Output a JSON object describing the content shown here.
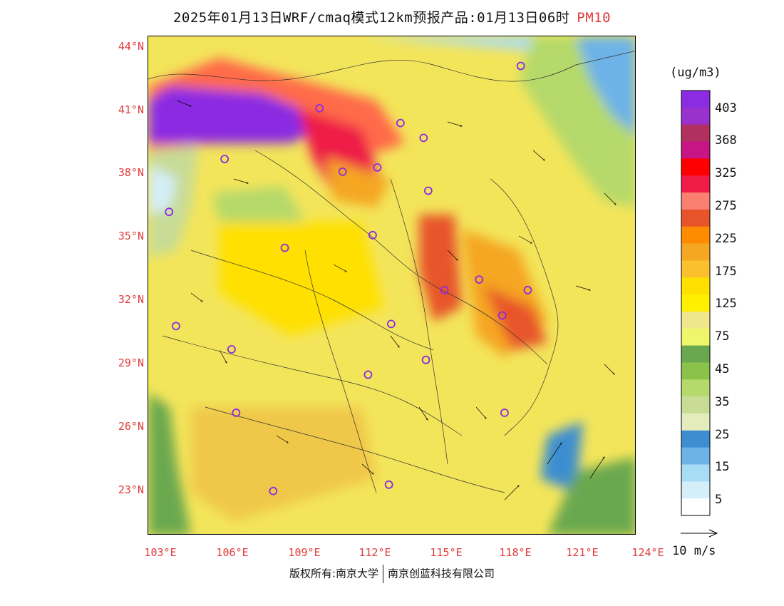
{
  "title": {
    "text": "2025年01月13日WRF/cmaq模式12km预报产品:01月13日06时",
    "pollutant": "PM10"
  },
  "axes": {
    "lat_labels": [
      "44°N",
      "41°N",
      "38°N",
      "35°N",
      "32°N",
      "29°N",
      "26°N",
      "23°N"
    ],
    "lat_values": [
      44,
      41,
      38,
      35,
      32,
      29,
      26,
      23
    ],
    "lon_labels": [
      "103°E",
      "106°E",
      "109°E",
      "112°E",
      "115°E",
      "118°E",
      "121°E",
      "124°E"
    ],
    "lon_values": [
      103,
      106,
      109,
      112,
      115,
      118,
      121,
      124
    ]
  },
  "colorbar": {
    "unit": "(ug/m3)",
    "labels": [
      "403",
      "368",
      "325",
      "275",
      "225",
      "175",
      "125",
      "75",
      "45",
      "35",
      "25",
      "15",
      "5"
    ],
    "colors_top_to_bottom": [
      "#8b2be2",
      "#9932cc",
      "#b03060",
      "#c71585",
      "#ff0000",
      "#ee1c47",
      "#fa8072",
      "#e8542a",
      "#ff8c00",
      "#f5a623",
      "#fbc02d",
      "#ffe000",
      "#fff000",
      "#f0e68c",
      "#eef76a",
      "#6aa84f",
      "#8bc34a",
      "#b5d96a",
      "#c8dc96",
      "#e4ecbd",
      "#3d8ed0",
      "#6db3e8",
      "#a8dcf5",
      "#d4eefa",
      "#ffffff"
    ]
  },
  "wind_reference": "10 m/s",
  "cities": [
    {
      "lon": 119.0,
      "lat": 42.9
    },
    {
      "lon": 110.3,
      "lat": 40.9
    },
    {
      "lon": 113.8,
      "lat": 40.2
    },
    {
      "lon": 114.8,
      "lat": 39.5
    },
    {
      "lon": 106.2,
      "lat": 38.5
    },
    {
      "lon": 112.8,
      "lat": 38.1
    },
    {
      "lon": 111.3,
      "lat": 37.9
    },
    {
      "lon": 115.0,
      "lat": 37.0
    },
    {
      "lon": 103.8,
      "lat": 36.0
    },
    {
      "lon": 112.6,
      "lat": 34.9
    },
    {
      "lon": 108.8,
      "lat": 34.3
    },
    {
      "lon": 117.2,
      "lat": 32.8
    },
    {
      "lon": 115.7,
      "lat": 32.3
    },
    {
      "lon": 119.3,
      "lat": 32.3
    },
    {
      "lon": 118.2,
      "lat": 31.1
    },
    {
      "lon": 104.1,
      "lat": 30.6
    },
    {
      "lon": 113.4,
      "lat": 30.7
    },
    {
      "lon": 106.5,
      "lat": 29.5
    },
    {
      "lon": 114.9,
      "lat": 29.0
    },
    {
      "lon": 112.4,
      "lat": 28.3
    },
    {
      "lon": 118.3,
      "lat": 26.5
    },
    {
      "lon": 106.7,
      "lat": 26.5
    },
    {
      "lon": 102.7,
      "lat": 25.0
    },
    {
      "lon": 113.3,
      "lat": 23.1
    },
    {
      "lon": 108.3,
      "lat": 22.8
    }
  ],
  "copyright": {
    "left": "版权所有:南京大学",
    "right": "南京创蓝科技有限公司"
  }
}
